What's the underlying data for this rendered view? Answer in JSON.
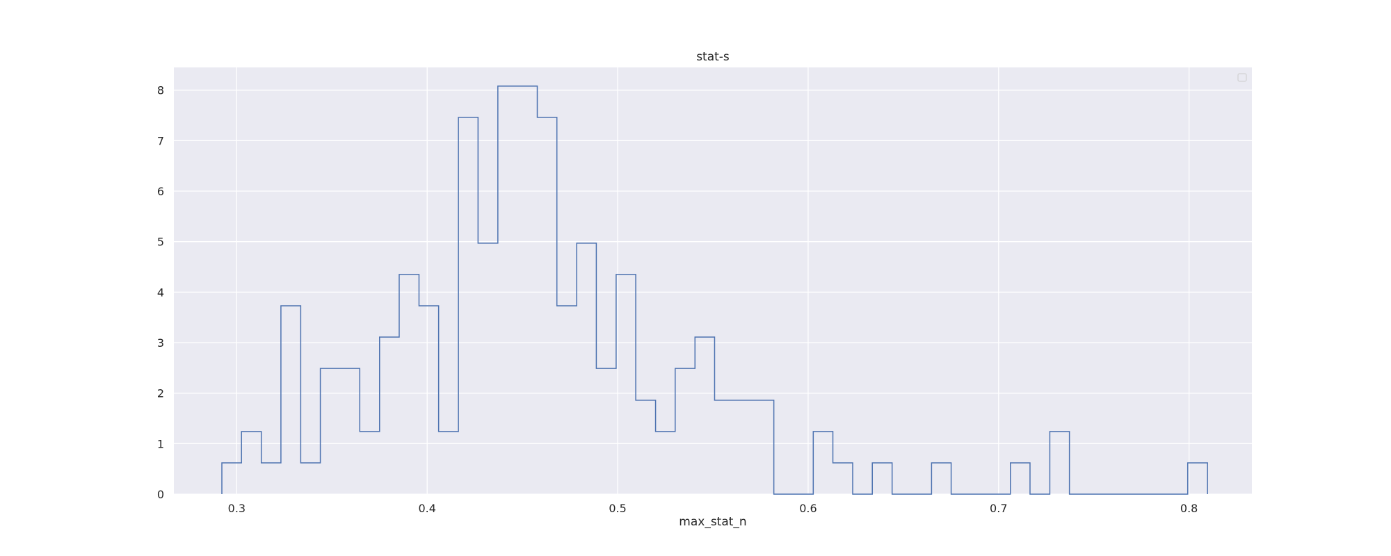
{
  "chart_data": {
    "type": "histogram",
    "title": "stat-s",
    "xlabel": "max_stat_n",
    "ylabel": "",
    "xlim": [
      0.267,
      0.833
    ],
    "ylim": [
      0,
      8.45
    ],
    "xticks": [
      0.3,
      0.4,
      0.5,
      0.6,
      0.7,
      0.8
    ],
    "xtick_labels": [
      "0.3",
      "0.4",
      "0.5",
      "0.6",
      "0.7",
      "0.8"
    ],
    "yticks": [
      0,
      1,
      2,
      3,
      4,
      5,
      6,
      7,
      8
    ],
    "ytick_labels": [
      "0",
      "1",
      "2",
      "3",
      "4",
      "5",
      "6",
      "7",
      "8"
    ],
    "grid": true,
    "legend": "top-right (empty)",
    "style": {
      "background": "#eaeaf2",
      "grid_color": "#ffffff",
      "line_color": "#4c72b0"
    },
    "histtype": "step",
    "bin_edges": [
      0.2922,
      0.3025,
      0.3129,
      0.3232,
      0.3336,
      0.3439,
      0.3543,
      0.3646,
      0.375,
      0.3853,
      0.3957,
      0.406,
      0.4164,
      0.4267,
      0.4371,
      0.4474,
      0.4578,
      0.4681,
      0.4785,
      0.4888,
      0.4992,
      0.5095,
      0.5199,
      0.5302,
      0.5406,
      0.5509,
      0.5613,
      0.5716,
      0.582,
      0.5923,
      0.6027,
      0.613,
      0.6234,
      0.6337,
      0.6441,
      0.6544,
      0.6648,
      0.6751,
      0.6855,
      0.6958,
      0.7062,
      0.7165,
      0.7269,
      0.7372,
      0.7476,
      0.7579,
      0.7683,
      0.7786,
      0.789,
      0.7993,
      0.8097
    ],
    "counts": [
      0.62,
      1.24,
      0.62,
      3.73,
      0.62,
      2.49,
      2.49,
      1.24,
      3.11,
      4.35,
      3.73,
      1.24,
      7.46,
      4.97,
      8.08,
      8.08,
      7.46,
      3.73,
      4.97,
      2.49,
      4.35,
      1.86,
      1.24,
      2.49,
      3.11,
      1.86,
      1.86,
      1.86,
      0,
      0,
      1.24,
      0.62,
      0,
      0.62,
      0,
      0,
      0.62,
      0,
      0,
      0,
      0.62,
      0,
      1.24,
      0,
      0,
      0,
      0,
      0,
      0,
      0.62
    ]
  }
}
